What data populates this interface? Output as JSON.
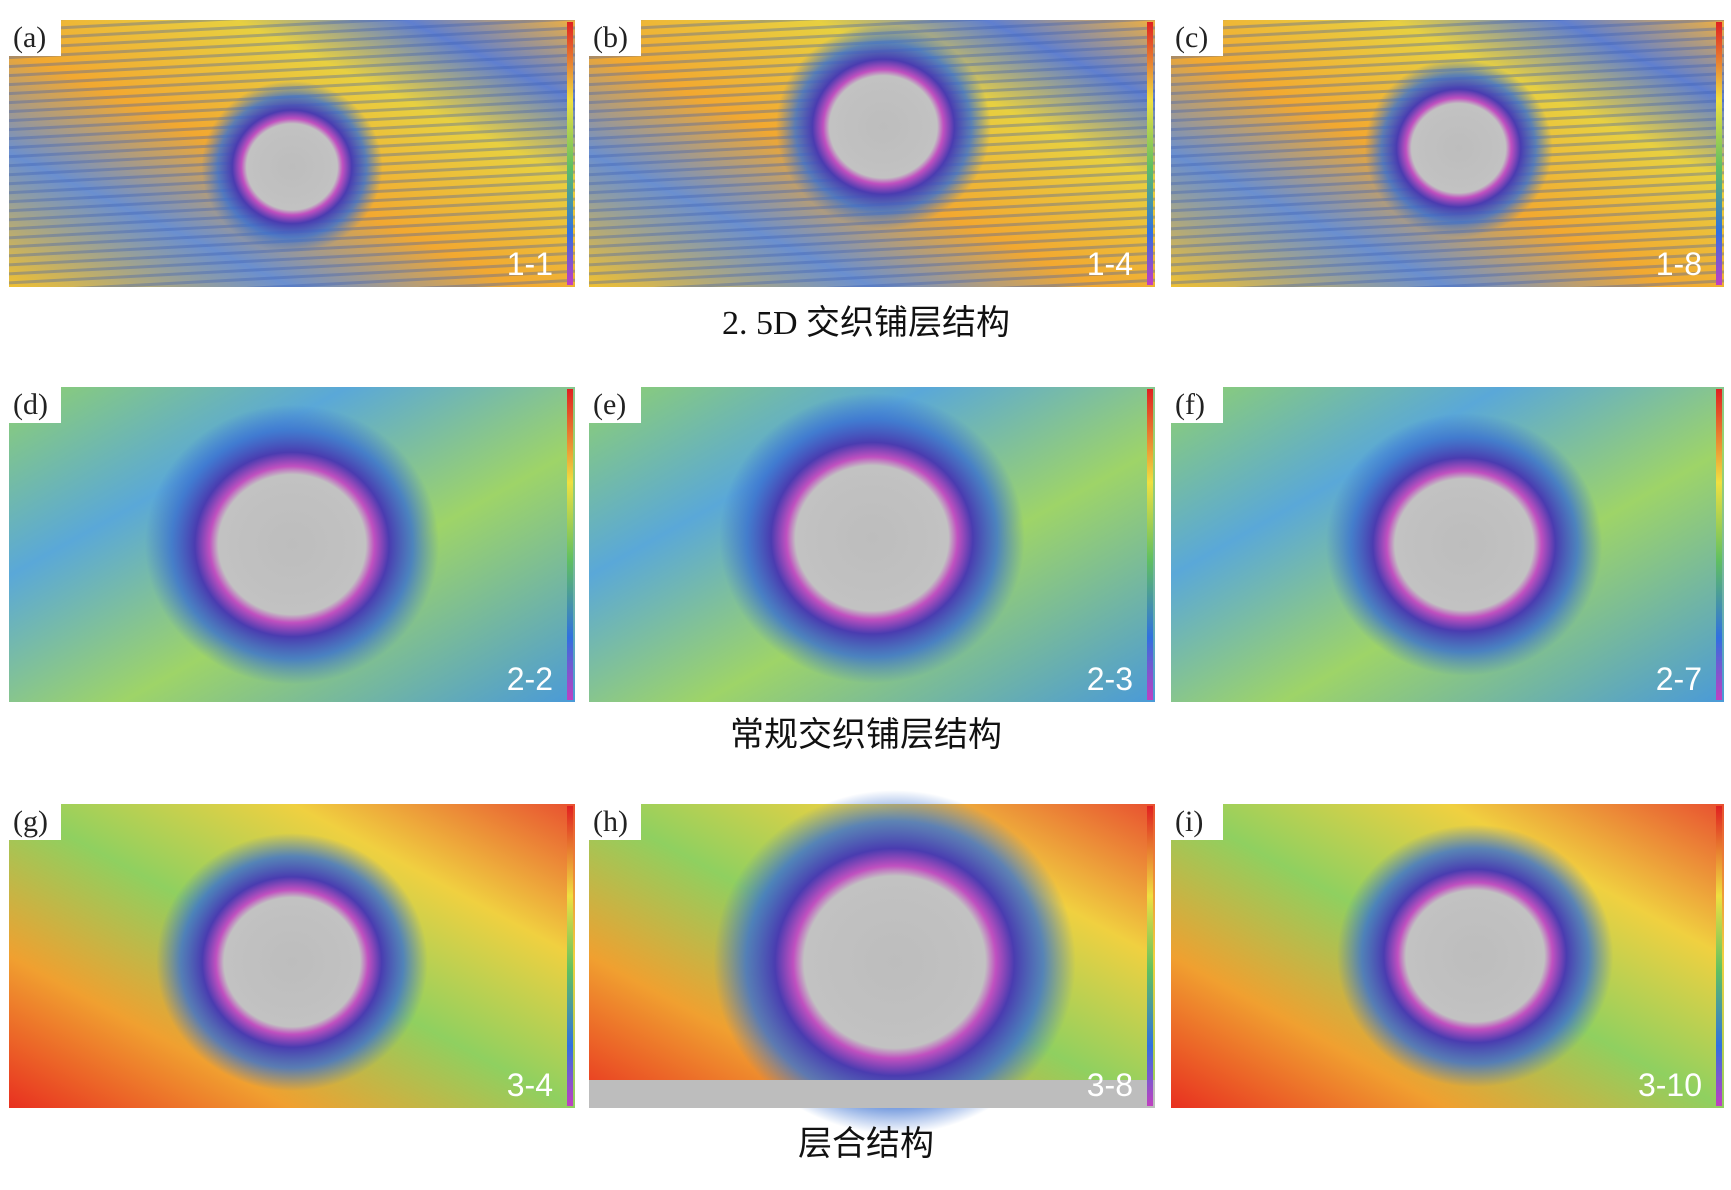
{
  "rows": [
    {
      "caption": "2. 5D 交织铺层结构",
      "panels": [
        {
          "label": "(a)",
          "code": "1-1"
        },
        {
          "label": "(b)",
          "code": "1-4"
        },
        {
          "label": "(c)",
          "code": "1-8"
        }
      ]
    },
    {
      "caption": "常规交织铺层结构",
      "panels": [
        {
          "label": "(d)",
          "code": "2-2"
        },
        {
          "label": "(e)",
          "code": "2-3"
        },
        {
          "label": "(f)",
          "code": "2-7"
        }
      ]
    },
    {
      "caption": "层合结构",
      "panels": [
        {
          "label": "(g)",
          "code": "3-4"
        },
        {
          "label": "(h)",
          "code": "3-8"
        },
        {
          "label": "(i)",
          "code": "3-10"
        }
      ]
    }
  ]
}
